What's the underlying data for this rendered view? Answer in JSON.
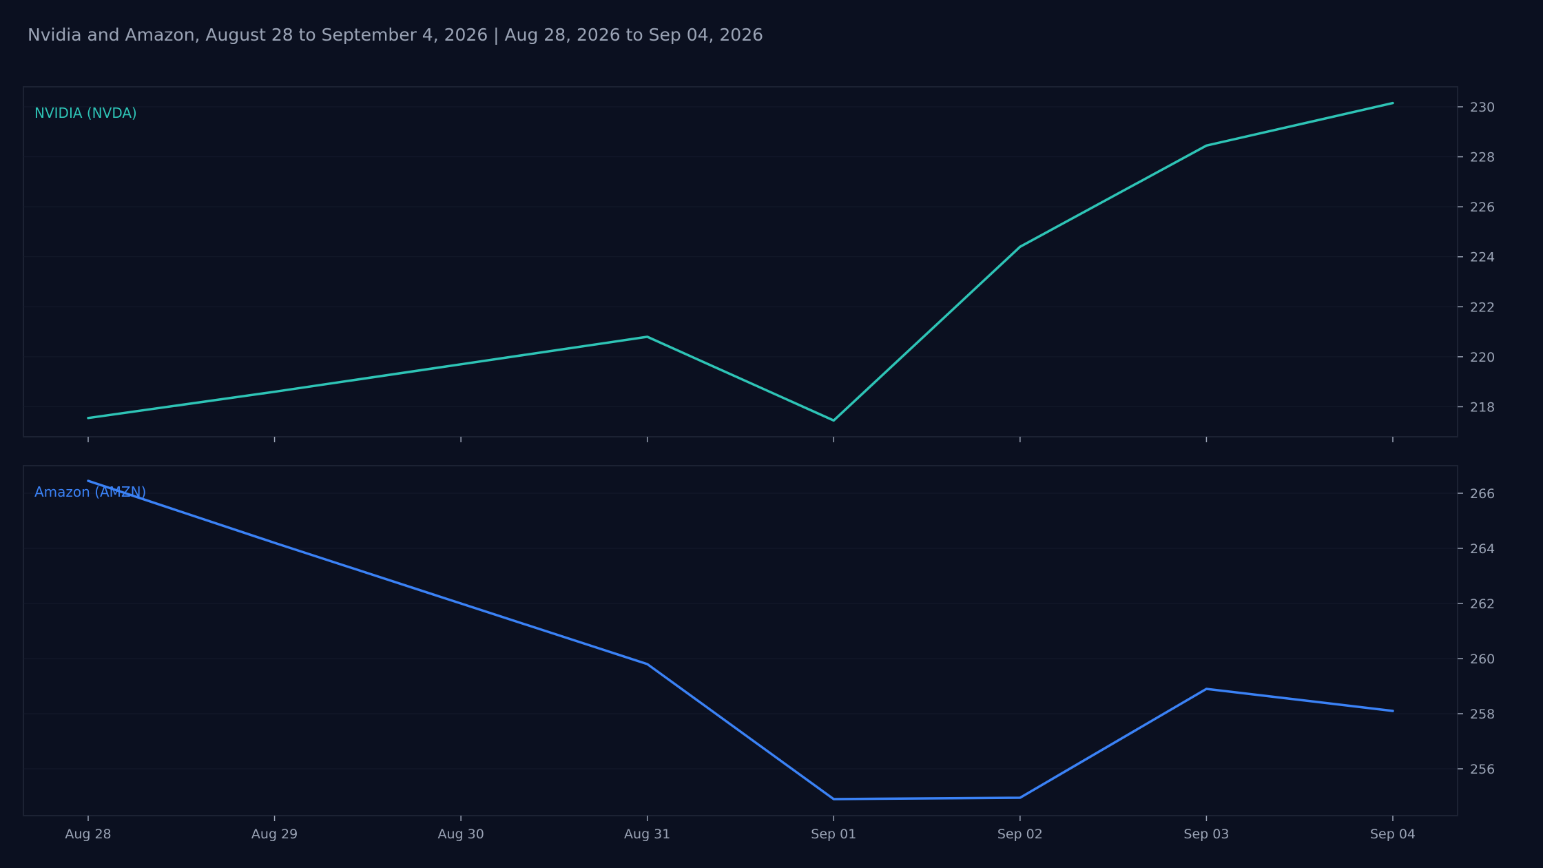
{
  "title": "Nvidia and Amazon, August 28 to September 4, 2026 | Aug 28, 2026 to Sep 04, 2026",
  "colors": {
    "background": "#0b1020",
    "panel_border": "#1c2233",
    "grid": "#141a2b",
    "tick_text": "#9aa3b5",
    "nvda": "#2ec4b6",
    "amzn": "#3b82f6"
  },
  "chart_data": [
    {
      "type": "line",
      "title": "",
      "series": [
        {
          "name": "NVIDIA (NVDA)",
          "color": "#2ec4b6",
          "values": [
            217.55,
            218.6,
            219.7,
            220.8,
            217.45,
            224.4,
            228.45,
            230.15
          ]
        }
      ],
      "x": [
        "Aug 28",
        "Aug 29",
        "Aug 30",
        "Aug 31",
        "Sep 01",
        "Sep 02",
        "Sep 03",
        "Sep 04"
      ],
      "ylim": [
        216.8,
        230.8
      ],
      "yticks": [
        218,
        220,
        222,
        224,
        226,
        228,
        230
      ],
      "y_axis_side": "right",
      "x_tick_labels_shown": false,
      "grid": true
    },
    {
      "type": "line",
      "title": "",
      "series": [
        {
          "name": "Amazon (AMZN)",
          "color": "#3b82f6",
          "values": [
            266.45,
            264.2,
            262.0,
            259.8,
            254.9,
            254.95,
            258.9,
            258.1
          ]
        }
      ],
      "x": [
        "Aug 28",
        "Aug 29",
        "Aug 30",
        "Aug 31",
        "Sep 01",
        "Sep 02",
        "Sep 03",
        "Sep 04"
      ],
      "ylim": [
        254.3,
        267.0
      ],
      "yticks": [
        256,
        258,
        260,
        262,
        264,
        266
      ],
      "y_axis_side": "right",
      "x_tick_labels_shown": true,
      "grid": true
    }
  ]
}
